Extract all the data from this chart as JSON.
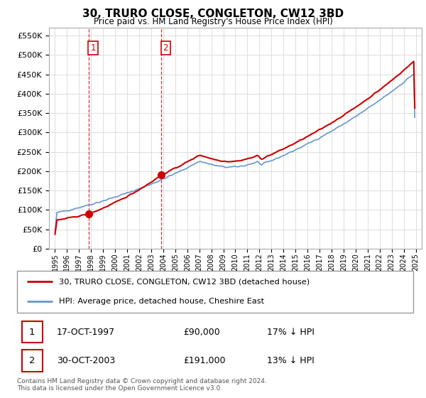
{
  "title": "30, TRURO CLOSE, CONGLETON, CW12 3BD",
  "subtitle": "Price paid vs. HM Land Registry's House Price Index (HPI)",
  "legend_line1": "30, TRURO CLOSE, CONGLETON, CW12 3BD (detached house)",
  "legend_line2": "HPI: Average price, detached house, Cheshire East",
  "table_rows": [
    {
      "num": "1",
      "date": "17-OCT-1997",
      "price": "£90,000",
      "note": "17% ↓ HPI"
    },
    {
      "num": "2",
      "date": "30-OCT-2003",
      "price": "£191,000",
      "note": "13% ↓ HPI"
    }
  ],
  "footnote": "Contains HM Land Registry data © Crown copyright and database right 2024.\nThis data is licensed under the Open Government Licence v3.0.",
  "sale1_year": 1997.79,
  "sale1_price": 90000,
  "sale2_year": 2003.83,
  "sale2_price": 191000,
  "red_line_color": "#cc0000",
  "blue_line_color": "#6699cc",
  "marker_color": "#cc0000",
  "dashed_line_color": "#cc0000",
  "grid_color": "#dddddd",
  "background_color": "#ffffff",
  "ylim": [
    0,
    570000
  ],
  "yticks": [
    0,
    50000,
    100000,
    150000,
    200000,
    250000,
    300000,
    350000,
    400000,
    450000,
    500000,
    550000
  ],
  "xlim_start": 1994.5,
  "xlim_end": 2025.5,
  "xticks": [
    1995,
    1996,
    1997,
    1998,
    1999,
    2000,
    2001,
    2002,
    2003,
    2004,
    2005,
    2006,
    2007,
    2008,
    2009,
    2010,
    2011,
    2012,
    2013,
    2014,
    2015,
    2016,
    2017,
    2018,
    2019,
    2020,
    2021,
    2022,
    2023,
    2024,
    2025
  ]
}
